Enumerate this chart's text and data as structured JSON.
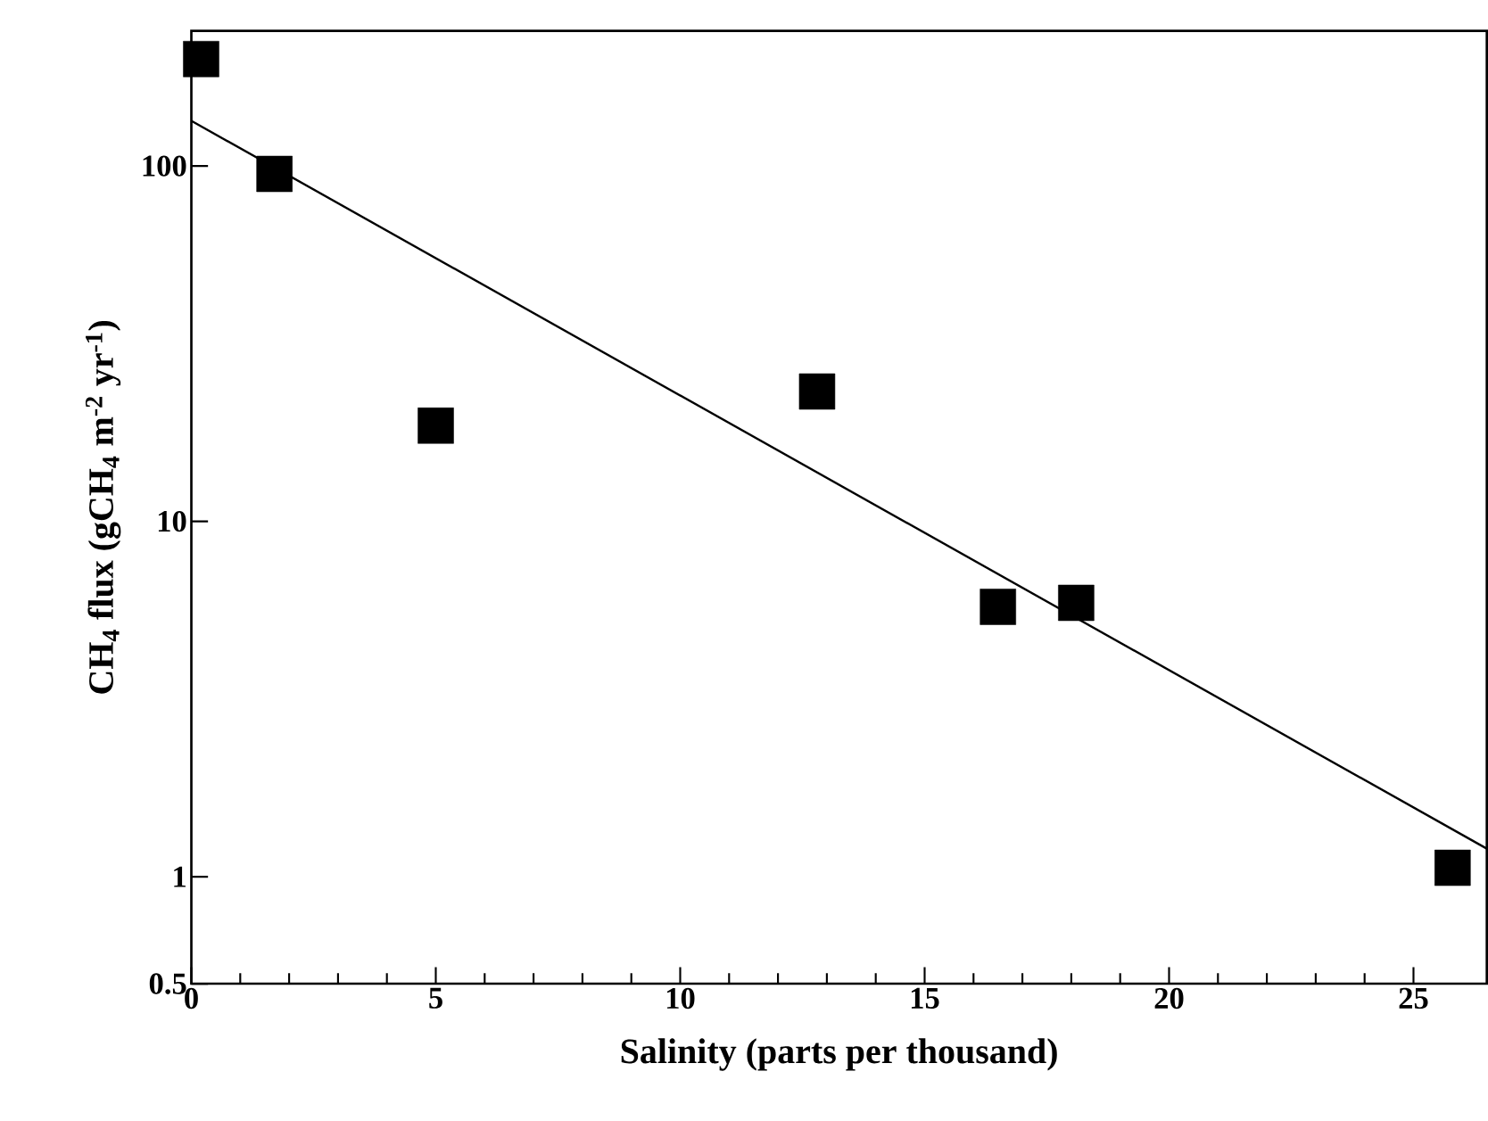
{
  "chart_data": {
    "type": "scatter",
    "xlabel": "Salinity (parts per thousand)",
    "ylabel": "CH$_{4}$ flux  (gCH$_{4}$  m$^{-2}$ yr$^{-1}$)",
    "log": "y",
    "xlim": [
      0,
      26.5
    ],
    "ylim": [
      0.5,
      240
    ],
    "xticks": [
      0,
      5,
      10,
      15,
      20,
      25
    ],
    "yticks": [
      0.5,
      1,
      10,
      100
    ],
    "marker": "square",
    "grid": false,
    "series": [
      {
        "color": "#000000",
        "x": [
          0.2,
          1.7,
          5.0,
          12.8,
          16.5,
          18.1,
          25.8
        ],
        "values": [
          200,
          95,
          18.6,
          23.2,
          5.75,
          5.9,
          1.06
        ]
      },
      {
        "type": "line",
        "marker": "none",
        "color": "#000000",
        "x": [
          0,
          26.5
        ],
        "values": [
          134,
          1.2
        ]
      }
    ]
  }
}
